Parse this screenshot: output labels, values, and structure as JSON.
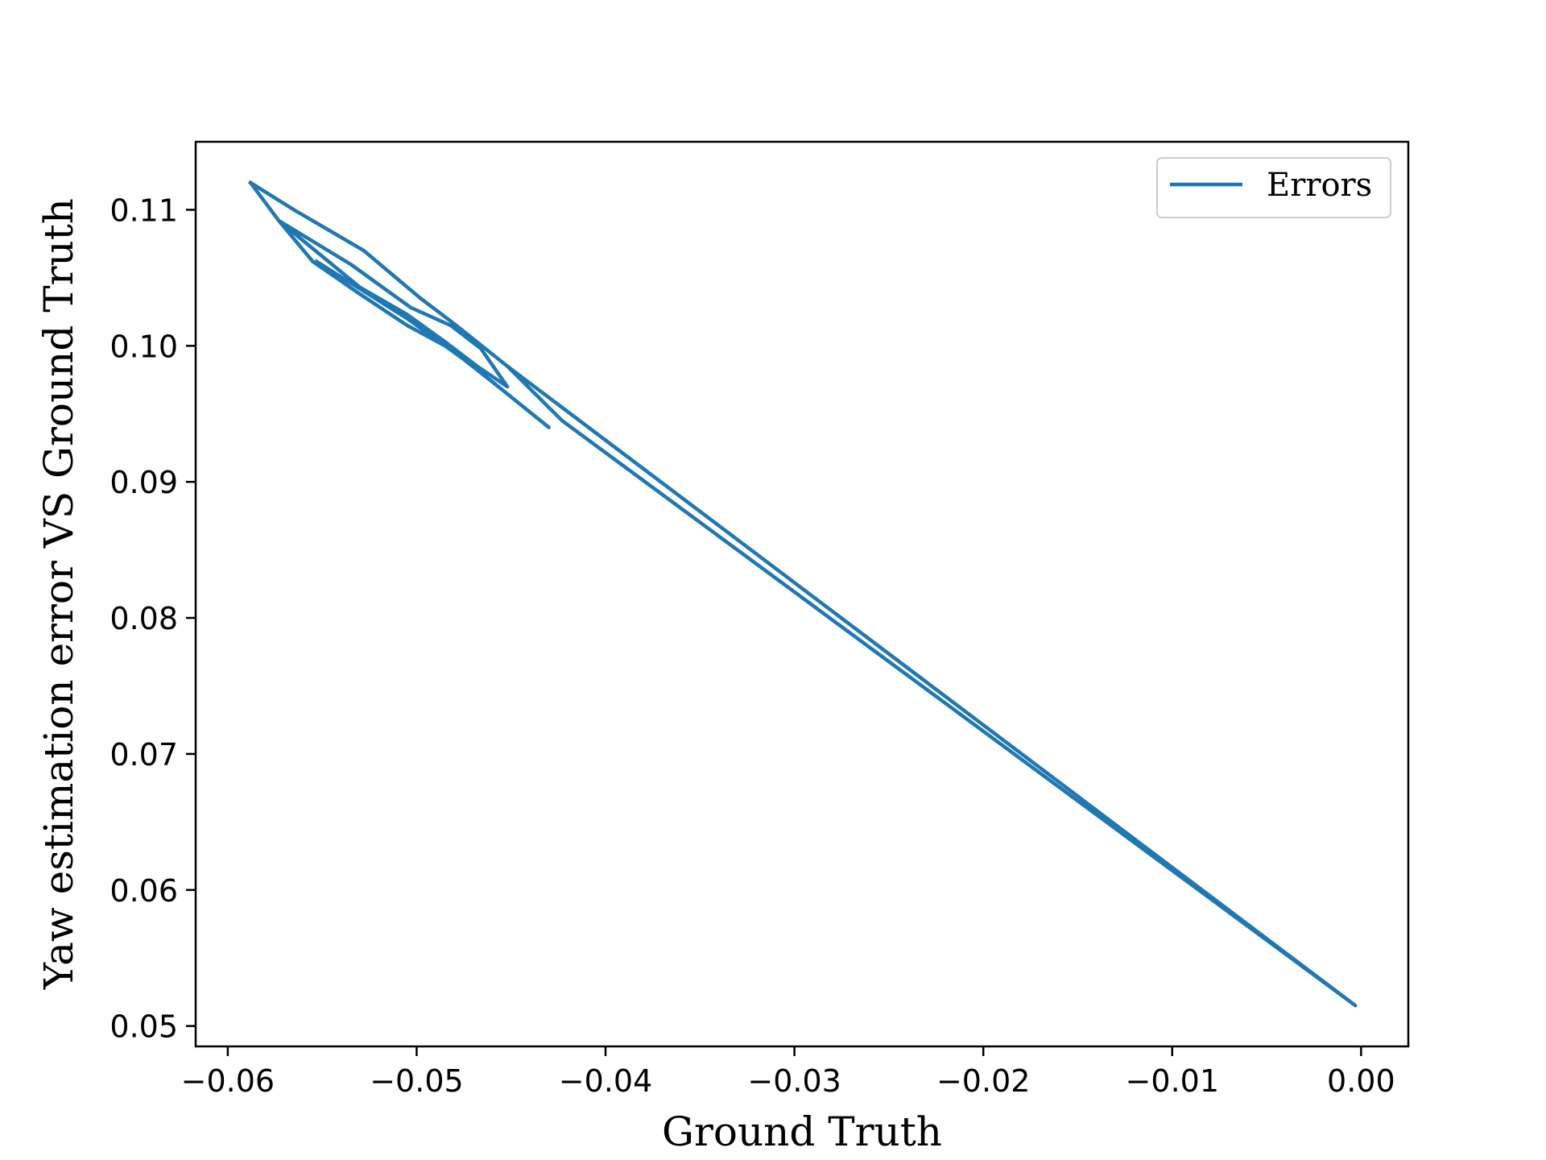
{
  "chart_data": {
    "type": "line",
    "title": "",
    "xlabel": "Ground Truth",
    "ylabel": "Yaw estimation error VS Ground Truth",
    "xlim": [
      -0.0617,
      0.0025
    ],
    "ylim": [
      0.0485,
      0.115
    ],
    "xticks": [
      -0.06,
      -0.05,
      -0.04,
      -0.03,
      -0.02,
      -0.01,
      0.0
    ],
    "xtick_labels": [
      "−0.06",
      "−0.05",
      "−0.04",
      "−0.03",
      "−0.02",
      "−0.01",
      "0.00"
    ],
    "yticks": [
      0.05,
      0.06,
      0.07,
      0.08,
      0.09,
      0.1,
      0.11
    ],
    "ytick_labels": [
      "0.05",
      "0.06",
      "0.07",
      "0.08",
      "0.09",
      "0.10",
      "0.11"
    ],
    "grid": false,
    "legend_position": "top-right",
    "series": [
      {
        "name": "Errors",
        "color": "#1f77b4",
        "x": [
          -0.0588,
          -0.0565,
          -0.0528,
          -0.0498,
          -0.0479,
          -0.0452,
          -0.0423,
          -0.0003,
          -0.0452,
          -0.0479,
          -0.0498,
          -0.0528,
          -0.0565,
          -0.0588,
          -0.0573,
          -0.0535,
          -0.0503,
          -0.0482,
          -0.0466,
          -0.0452,
          -0.0468,
          -0.0485,
          -0.0505,
          -0.053,
          -0.0573,
          -0.0555,
          -0.053,
          -0.0505,
          -0.0485,
          -0.047,
          -0.0455,
          -0.043,
          -0.0455,
          -0.0475,
          -0.0505,
          -0.0553
        ],
        "y": [
          0.112,
          0.11,
          0.107,
          0.1035,
          0.1015,
          0.0985,
          0.0945,
          0.0515,
          0.0985,
          0.1015,
          0.1035,
          0.107,
          0.11,
          0.112,
          0.1092,
          0.106,
          0.1028,
          0.1015,
          0.0998,
          0.097,
          0.0985,
          0.1003,
          0.1023,
          0.1043,
          0.1092,
          0.1062,
          0.1038,
          0.1015,
          0.1,
          0.0985,
          0.0968,
          0.094,
          0.0968,
          0.099,
          0.102,
          0.1062
        ]
      }
    ]
  }
}
